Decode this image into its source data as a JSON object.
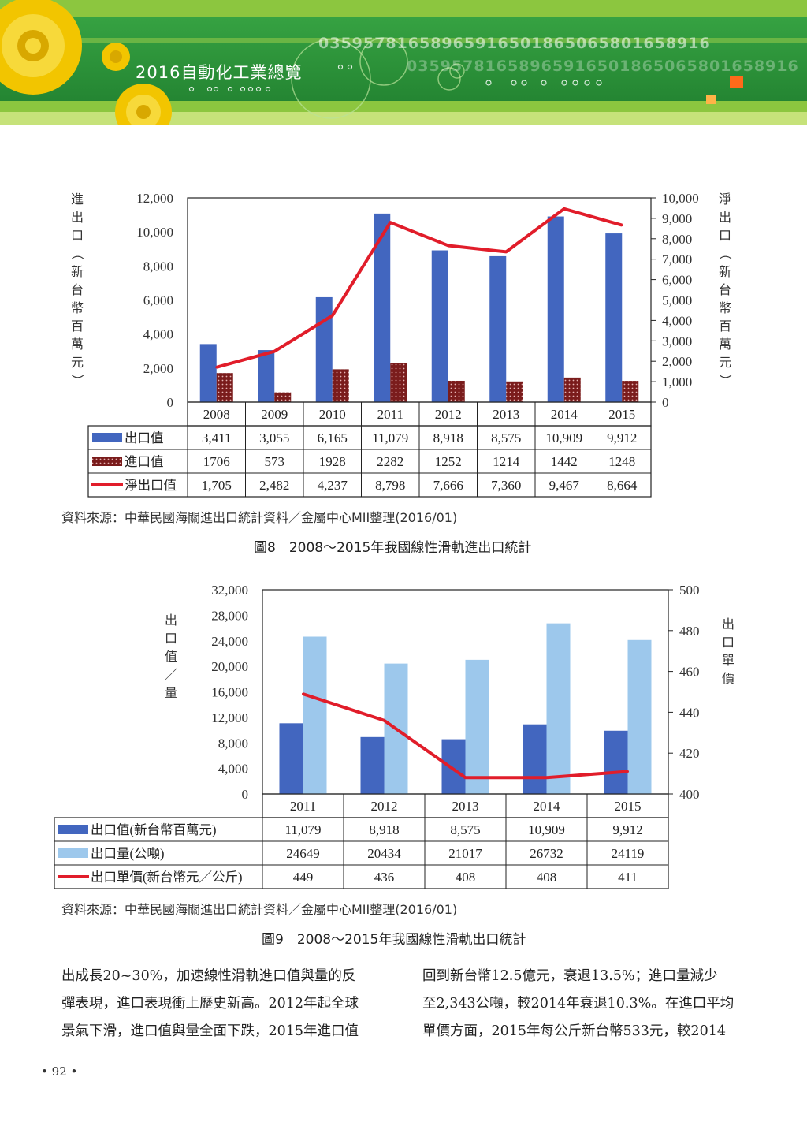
{
  "header": {
    "title": "2016自動化工業總覽",
    "digits": "0359578165896591650186506580165891​6",
    "digits2": "03595781658965916501865065801658916"
  },
  "figure8": {
    "left_axis_label": "進出口（新台幣百萬元）",
    "right_axis_label": "淨出口（新台幣百萬元）",
    "source": "資料來源：中華民國海關進出口統計資料／金屬中心MII整理(2016/01)",
    "caption": "圖8　2008～2015年我國線性滑軌進出口統計"
  },
  "figure9": {
    "left_axis_label": "出口值／量",
    "right_axis_label": "出口單價",
    "source": "資料來源：中華民國海關進出口統計資料／金屬中心MII整理(2016/01)",
    "caption": "圖9　2008～2015年我國線性滑軌出口統計"
  },
  "body_text": {
    "left": [
      "出成長20~30%，加速線性滑軌進口值與量的反",
      "彈表現，進口表現衝上歷史新高。2012年起全球",
      "景氣下滑，進口值與量全面下跌，2015年進口值"
    ],
    "right": [
      "回到新台幣12.5億元，衰退13.5%；進口量減少",
      "至2,343公噸，較2014年衰退10.3%。在進口平均",
      "單價方面，2015年每公斤新台幣533元，較2014"
    ]
  },
  "page_number": "• 92 •",
  "colors": {
    "banner_green": "#2f9a3c",
    "bar_dark_blue": "#4266bf",
    "bar_light_blue": "#9dc8ec",
    "bar_maroon": "#7a1c1c",
    "line_red": "#e11d2a"
  },
  "chart_data": [
    {
      "type": "bar",
      "combo": "bar+line",
      "categories": [
        "2008",
        "2009",
        "2010",
        "2011",
        "2012",
        "2013",
        "2014",
        "2015"
      ],
      "series": [
        {
          "name": "出口值",
          "type": "bar",
          "axis": "left",
          "values": [
            3411,
            3055,
            6165,
            11079,
            8918,
            8575,
            10909,
            9912
          ],
          "display": [
            "3,411",
            "3,055",
            "6,165",
            "11,079",
            "8,918",
            "8,575",
            "10,909",
            "9,912"
          ]
        },
        {
          "name": "進口值",
          "type": "bar",
          "axis": "left",
          "values": [
            1706,
            573,
            1928,
            2282,
            1252,
            1214,
            1442,
            1248
          ],
          "display": [
            "1706",
            "573",
            "1928",
            "2282",
            "1252",
            "1214",
            "1442",
            "1248"
          ]
        },
        {
          "name": "淨出口值",
          "type": "line",
          "axis": "right",
          "values": [
            1705,
            2482,
            4237,
            8798,
            7666,
            7360,
            9467,
            8664
          ],
          "display": [
            "1,705",
            "2,482",
            "4,237",
            "8,798",
            "7,666",
            "7,360",
            "9,467",
            "8,664"
          ]
        }
      ],
      "ylim_left": [
        0,
        12000
      ],
      "yticks_left": [
        "0",
        "2,000",
        "4,000",
        "6,000",
        "8,000",
        "10,000",
        "12,000"
      ],
      "ylim_right": [
        0,
        10000
      ],
      "yticks_right": [
        "0",
        "1,000",
        "2,000",
        "3,000",
        "4,000",
        "5,000",
        "6,000",
        "7,000",
        "8,000",
        "9,000",
        "10,000"
      ],
      "ylabel": "進出口（新台幣百萬元）",
      "ylabel_right": "淨出口（新台幣百萬元）",
      "grid": false,
      "legend": "data-table-bottom"
    },
    {
      "type": "bar",
      "combo": "bar+line",
      "categories": [
        "2011",
        "2012",
        "2013",
        "2014",
        "2015"
      ],
      "series": [
        {
          "name": "出口值(新台幣百萬元)",
          "type": "bar",
          "axis": "left",
          "values": [
            11079,
            8918,
            8575,
            10909,
            9912
          ],
          "display": [
            "11,079",
            "8,918",
            "8,575",
            "10,909",
            "9,912"
          ]
        },
        {
          "name": "出口量(公噸)",
          "type": "bar",
          "axis": "left",
          "values": [
            24649,
            20434,
            21017,
            26732,
            24119
          ],
          "display": [
            "24649",
            "20434",
            "21017",
            "26732",
            "24119"
          ]
        },
        {
          "name": "出口單價(新台幣元／公斤)",
          "type": "line",
          "axis": "right",
          "values": [
            449,
            436,
            408,
            408,
            411
          ],
          "display": [
            "449",
            "436",
            "408",
            "408",
            "411"
          ]
        }
      ],
      "ylim_left": [
        0,
        32000
      ],
      "yticks_left": [
        "0",
        "4,000",
        "8,000",
        "12,000",
        "16,000",
        "20,000",
        "24,000",
        "28,000",
        "32,000"
      ],
      "ylim_right": [
        400,
        500
      ],
      "yticks_right": [
        "400",
        "420",
        "440",
        "460",
        "480",
        "500"
      ],
      "ylabel": "出口值／量",
      "ylabel_right": "出口單價",
      "grid": false,
      "legend": "data-table-bottom"
    }
  ]
}
